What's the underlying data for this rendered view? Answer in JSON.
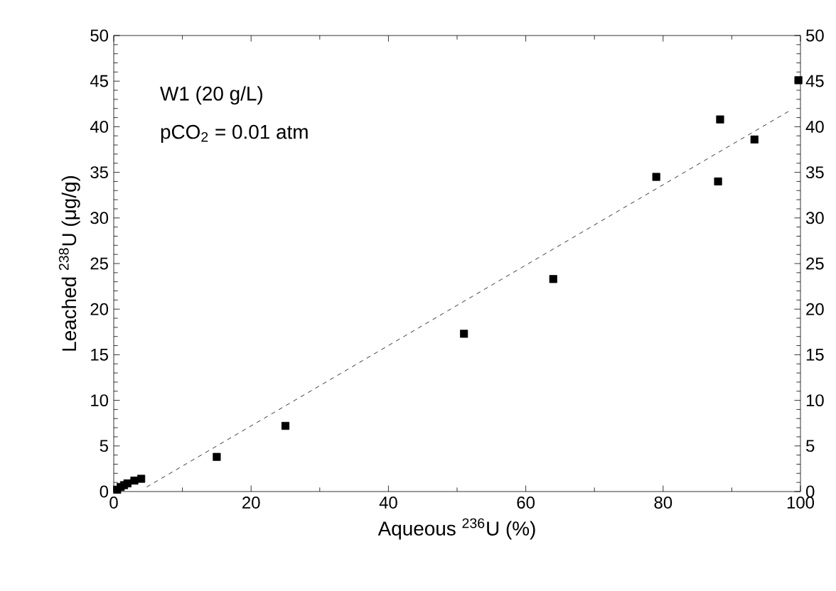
{
  "chart_data": {
    "type": "scatter",
    "xlabel": "Aqueous $^{236}$U (%)",
    "ylabel": "Leached $^{238}$U (μg/g)",
    "annotations": [
      "W1 (20 g/L)",
      "pCO$_{2}$ = 0.01 atm"
    ],
    "xlim": [
      0,
      100
    ],
    "ylim": [
      0,
      50
    ],
    "xticks": [
      0,
      20,
      40,
      60,
      80,
      100
    ],
    "yticks": [
      0,
      5,
      10,
      15,
      20,
      25,
      30,
      35,
      40,
      45,
      50
    ],
    "y2lim": [
      0,
      50
    ],
    "y2ticks": [
      0,
      5,
      10,
      15,
      20,
      25,
      30,
      35,
      40,
      45,
      50
    ],
    "series": [
      {
        "color": "#000000",
        "marker": "square",
        "x": [
          0.5,
          1,
          1.5,
          2,
          3,
          4,
          15,
          25,
          51,
          64,
          79,
          88,
          88.3,
          93.3,
          99.7
        ],
        "values": [
          0.2,
          0.5,
          0.7,
          0.9,
          1.2,
          1.4,
          3.8,
          7.2,
          17.3,
          23.3,
          34.5,
          34,
          40.8,
          38.6,
          45.1
        ]
      },
      {
        "type": "line",
        "color": "#000000",
        "line_style": "dashed",
        "x": [
          4.8,
          98.3
        ],
        "values": [
          0.5,
          41.7
        ]
      }
    ]
  }
}
